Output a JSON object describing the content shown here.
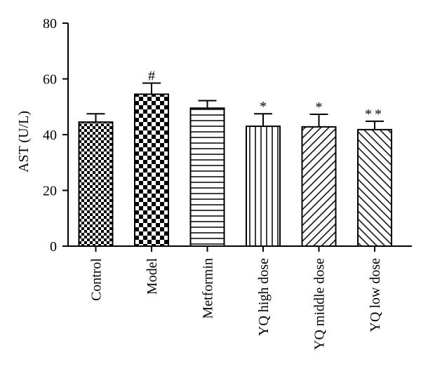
{
  "chart_data": {
    "type": "bar",
    "ylabel": "AST (U/L)",
    "ylim": [
      0,
      80
    ],
    "yticks": [
      0,
      20,
      40,
      60,
      80
    ],
    "categories": [
      "Control",
      "Model",
      "Metformin",
      "YQ high dose",
      "YQ middle dose",
      "YQ low dose"
    ],
    "values": [
      44.5,
      54.5,
      49.5,
      43,
      42.8,
      41.8
    ],
    "errors": [
      3,
      4,
      2.7,
      4.5,
      4.5,
      3
    ],
    "annotations": [
      "",
      "#",
      "",
      "*",
      "*",
      "**"
    ],
    "patterns": [
      "checker-fine",
      "checker-coarse",
      "horizontal-lines",
      "vertical-lines",
      "diagonal-forward",
      "diagonal-back"
    ],
    "grid": false
  }
}
